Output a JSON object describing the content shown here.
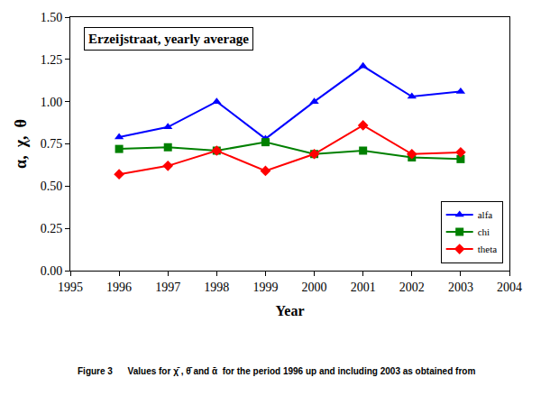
{
  "chart_data": {
    "type": "line",
    "title": "Erzeijstraat, yearly average",
    "x_label": "Year",
    "y_label": "α,  χ,  θ",
    "caption": "Figure 3      Values for χ̄ , θ̄ and ᾱ  for the period 1996 up and including 2003 as obtained from",
    "x": [
      1996,
      1997,
      1998,
      1999,
      2000,
      2001,
      2002,
      2003
    ],
    "series": [
      {
        "name": "alfa",
        "color": "#0000ff",
        "marker": "triangle-up",
        "values": [
          0.79,
          0.85,
          1.0,
          0.78,
          1.0,
          1.21,
          1.03,
          1.06
        ]
      },
      {
        "name": "chi",
        "color": "#008000",
        "marker": "square",
        "values": [
          0.72,
          0.73,
          0.71,
          0.76,
          0.69,
          0.71,
          0.67,
          0.66
        ]
      },
      {
        "name": "theta",
        "color": "#ff0000",
        "marker": "diamond",
        "values": [
          0.57,
          0.62,
          0.71,
          0.59,
          0.69,
          0.86,
          0.69,
          0.7
        ]
      }
    ],
    "xlim": [
      1995,
      2004
    ],
    "xticks": [
      1995,
      1996,
      1997,
      1998,
      1999,
      2000,
      2001,
      2002,
      2003,
      2004
    ],
    "ylim": [
      0,
      1.5
    ],
    "yticks": [
      {
        "value": 0,
        "label": "0.00"
      },
      {
        "value": 0.25,
        "label": "0.25"
      },
      {
        "value": 0.5,
        "label": "0.50"
      },
      {
        "value": 0.75,
        "label": "0.75"
      },
      {
        "value": 1,
        "label": "1.00"
      },
      {
        "value": 1.25,
        "label": "1.25"
      },
      {
        "value": 1.5,
        "label": "1.50"
      }
    ],
    "grid": false,
    "legend": "lower right"
  }
}
